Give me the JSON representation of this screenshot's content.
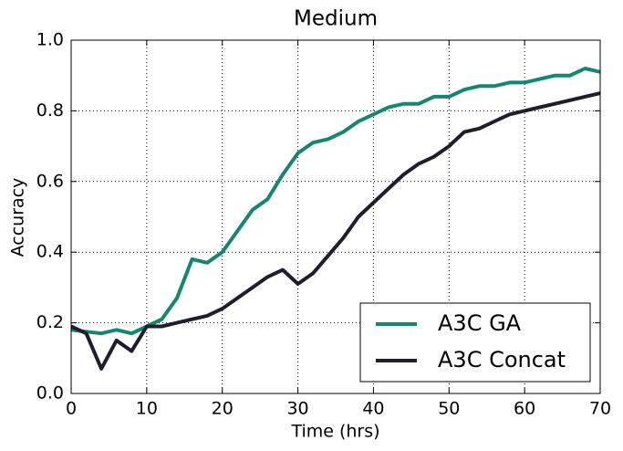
{
  "chart_data": {
    "type": "line",
    "title": "Medium",
    "x_label": "Time (hrs)",
    "y_label": "Accuracy",
    "x": [
      0,
      2,
      4,
      6,
      8,
      10,
      12,
      14,
      16,
      18,
      20,
      22,
      24,
      26,
      28,
      30,
      32,
      34,
      36,
      38,
      40,
      42,
      44,
      46,
      48,
      50,
      52,
      54,
      56,
      58,
      60,
      62,
      64,
      66,
      68,
      70
    ],
    "series": [
      {
        "name": "A3C GA",
        "color": "#15876f",
        "values": [
          0.18,
          0.175,
          0.17,
          0.18,
          0.17,
          0.19,
          0.21,
          0.27,
          0.38,
          0.37,
          0.4,
          0.46,
          0.52,
          0.55,
          0.62,
          0.68,
          0.71,
          0.72,
          0.74,
          0.77,
          0.79,
          0.81,
          0.82,
          0.82,
          0.84,
          0.84,
          0.86,
          0.87,
          0.87,
          0.88,
          0.88,
          0.89,
          0.9,
          0.9,
          0.92,
          0.91
        ]
      },
      {
        "name": "A3C Concat",
        "color": "#1e1e2c",
        "values": [
          0.19,
          0.17,
          0.07,
          0.15,
          0.12,
          0.19,
          0.19,
          0.2,
          0.21,
          0.22,
          0.24,
          0.27,
          0.3,
          0.33,
          0.35,
          0.31,
          0.34,
          0.39,
          0.44,
          0.5,
          0.54,
          0.58,
          0.62,
          0.65,
          0.67,
          0.7,
          0.74,
          0.75,
          0.77,
          0.79,
          0.8,
          0.81,
          0.82,
          0.83,
          0.84,
          0.85
        ]
      }
    ],
    "xlim": [
      0,
      70
    ],
    "xticks": [
      0,
      10,
      20,
      30,
      40,
      50,
      60,
      70
    ],
    "ylim": [
      0,
      1
    ],
    "yticks": [
      {
        "value": 0,
        "label": "0.0"
      },
      0.2,
      0.4,
      0.6,
      0.8,
      {
        "value": 1,
        "label": "1.0"
      }
    ],
    "grid": true,
    "legend": "lower right"
  }
}
